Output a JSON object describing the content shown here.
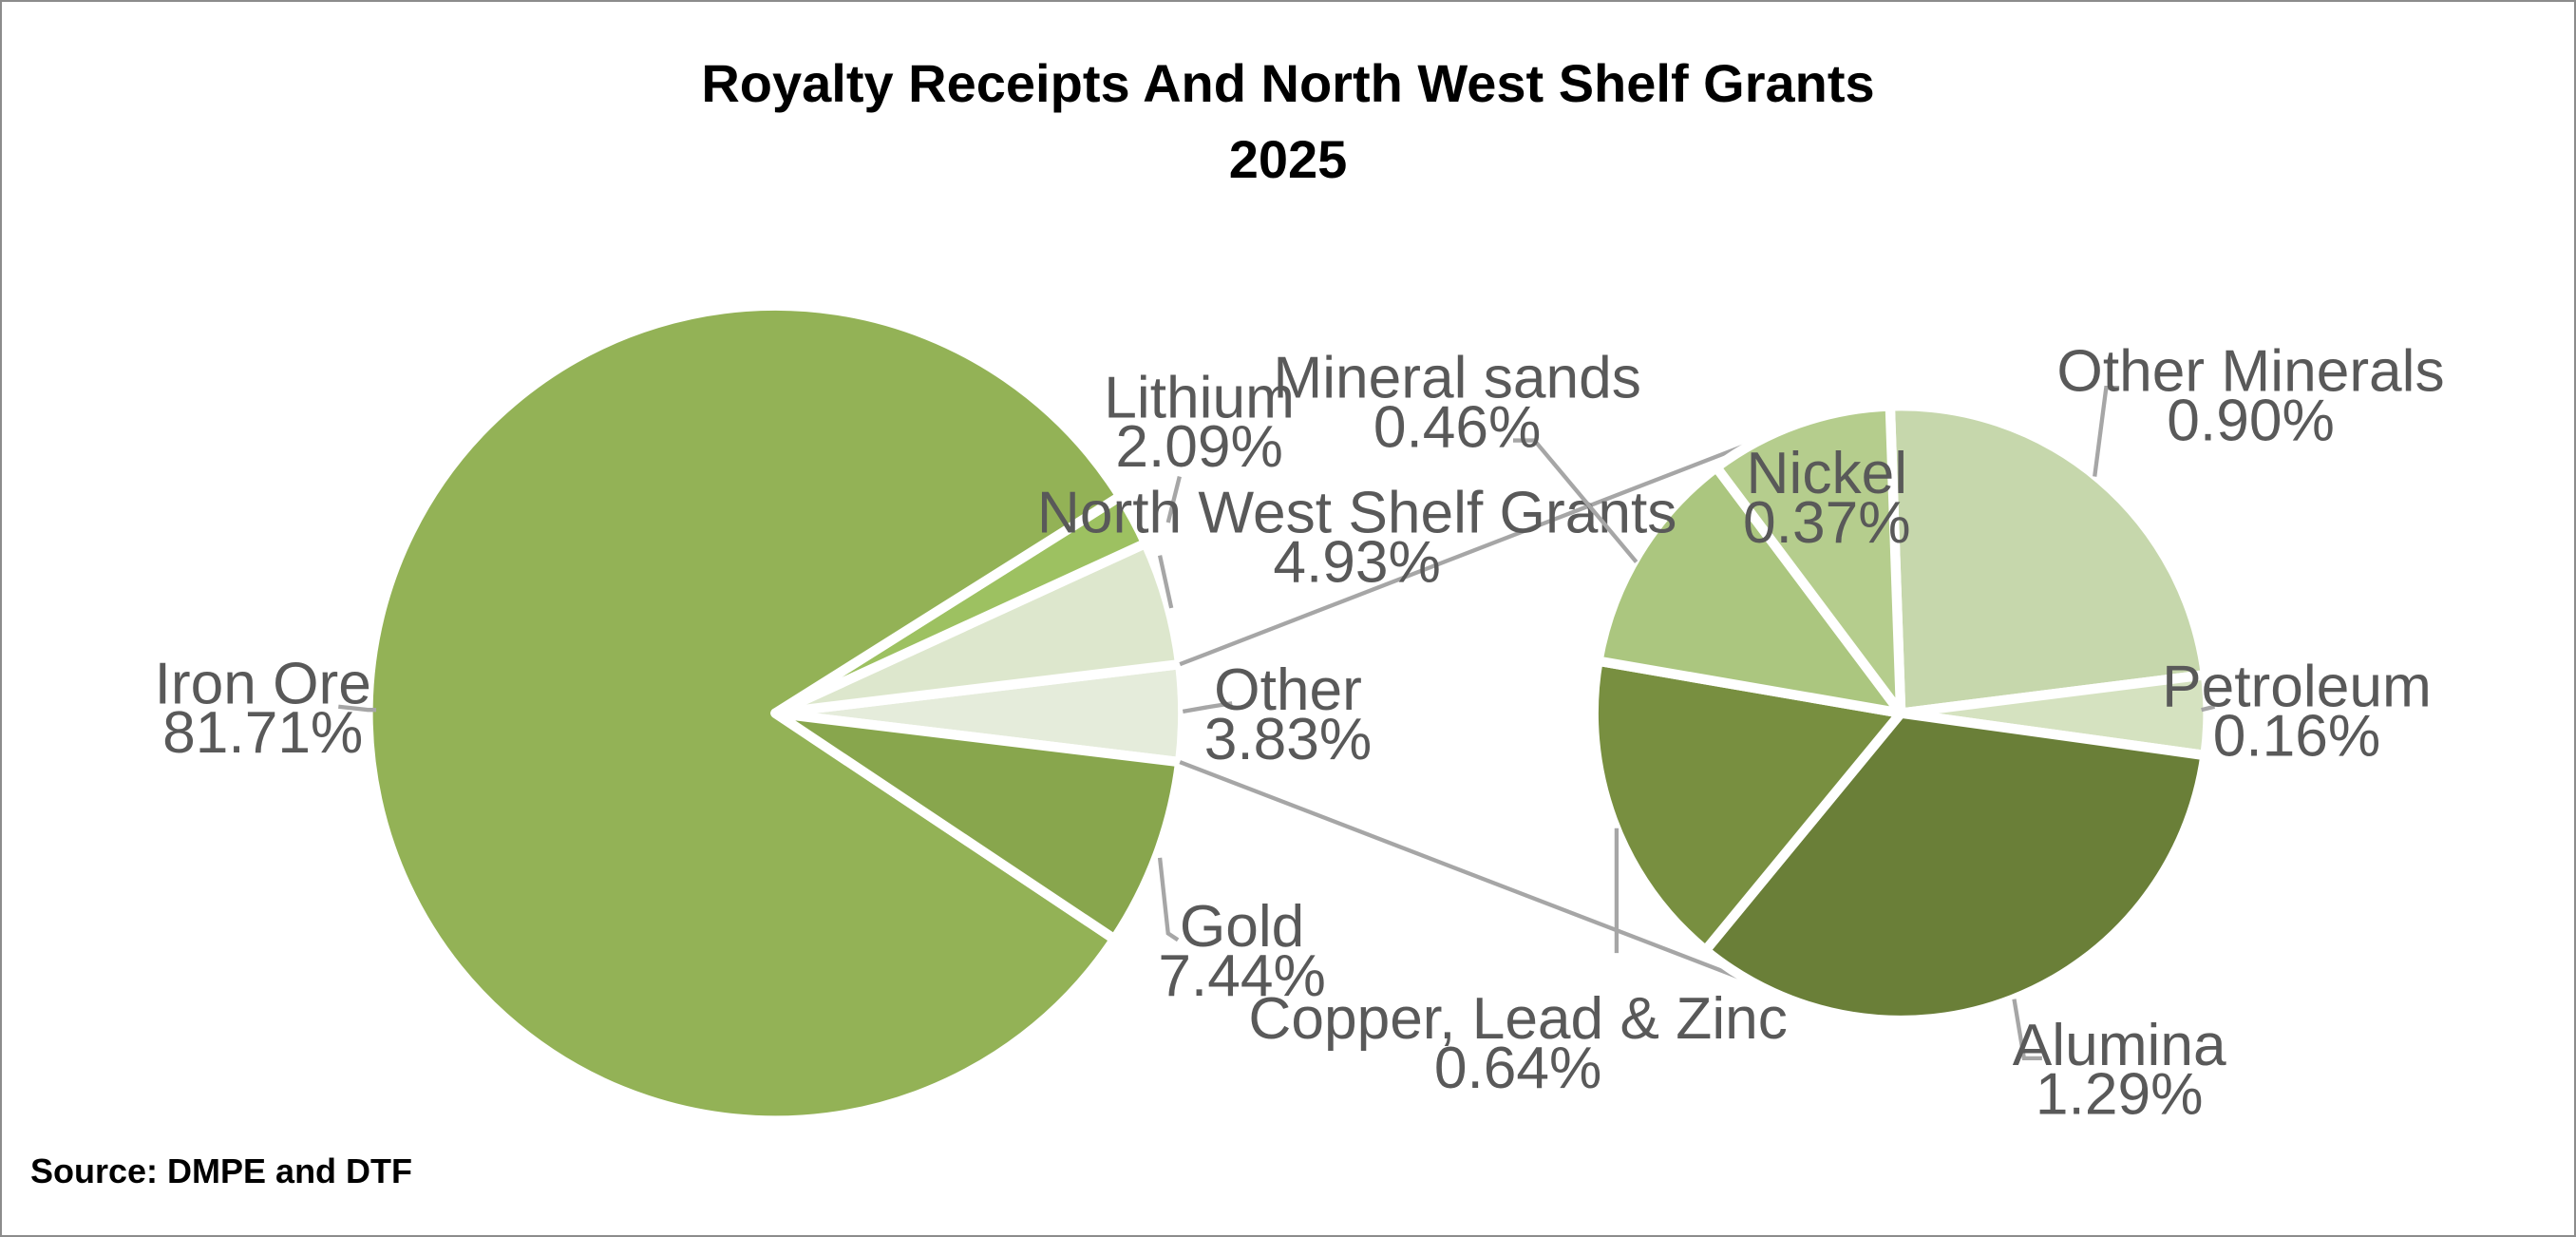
{
  "source_text": "Source:  DMPE and DTF",
  "colors": {
    "iron_ore": "#93b256",
    "lithium": "#9dc161",
    "nw_shelf": "#dde7cd",
    "other": "#e5ecdb",
    "gold": "#88a64d",
    "other_minerals": "#c6d7ac",
    "petroleum": "#d5e2c0",
    "alumina": "#6a7f38",
    "copper_lead_zinc": "#788f40",
    "mineral_sands": "#abc67f",
    "nickel": "#b5cd8d",
    "leader": "#a6a6a6",
    "label": "#595959"
  },
  "chart_data": {
    "type": "pie",
    "title_lines": [
      "Royalty Receipts And North West Shelf Grants",
      "2025"
    ],
    "main_pie": {
      "slices": [
        {
          "key": "iron_ore",
          "name": "Iron Ore",
          "value": 81.71,
          "label": "81.71%"
        },
        {
          "key": "lithium",
          "name": "Lithium",
          "value": 2.09,
          "label": "2.09%"
        },
        {
          "key": "nw_shelf",
          "name": "North West Shelf Grants",
          "value": 4.93,
          "label": "4.93%"
        },
        {
          "key": "other",
          "name": "Other",
          "value": 3.83,
          "label": "3.83%"
        },
        {
          "key": "gold",
          "name": "Gold",
          "value": 7.44,
          "label": "7.44%"
        }
      ]
    },
    "breakdown_pie": {
      "of": "Other",
      "slices": [
        {
          "key": "other_minerals",
          "name": "Other Minerals",
          "value": 0.9,
          "label": "0.90%"
        },
        {
          "key": "petroleum",
          "name": "Petroleum",
          "value": 0.16,
          "label": "0.16%"
        },
        {
          "key": "alumina",
          "name": "Alumina",
          "value": 1.29,
          "label": "1.29%"
        },
        {
          "key": "copper_lead_zinc",
          "name": "Copper, Lead & Zinc",
          "value": 0.64,
          "label": "0.64%"
        },
        {
          "key": "mineral_sands",
          "name": "Mineral sands",
          "value": 0.46,
          "label": "0.46%"
        },
        {
          "key": "nickel",
          "name": "Nickel",
          "value": 0.37,
          "label": "0.37%"
        }
      ]
    }
  }
}
